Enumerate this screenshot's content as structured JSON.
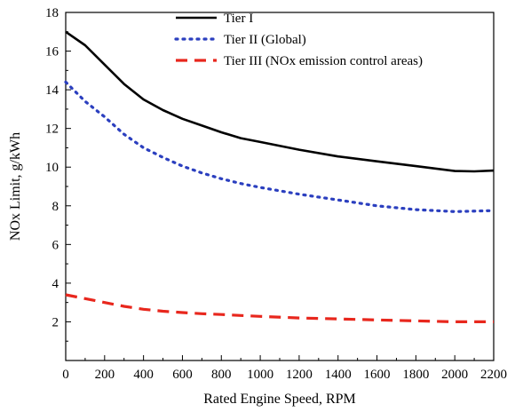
{
  "chart_data": {
    "type": "line",
    "xlabel": "Rated Engine Speed, RPM",
    "ylabel": "NOx Limit, g/kWh",
    "xlim": [
      0,
      2200
    ],
    "ylim": [
      0,
      18
    ],
    "xticks": [
      0,
      200,
      400,
      600,
      800,
      1000,
      1200,
      1400,
      1600,
      1800,
      2000,
      2200
    ],
    "yticks": [
      2,
      4,
      6,
      8,
      10,
      12,
      14,
      16,
      18
    ],
    "grid": false,
    "legend_position": "top-right",
    "series": [
      {
        "name": "Tier I",
        "color": "#000000",
        "style": "solid",
        "x": [
          0,
          100,
          200,
          300,
          400,
          500,
          600,
          700,
          800,
          900,
          1000,
          1200,
          1400,
          1600,
          1800,
          2000,
          2100,
          2200
        ],
        "y": [
          17.0,
          16.3,
          15.3,
          14.3,
          13.5,
          12.95,
          12.5,
          12.15,
          11.8,
          11.5,
          11.3,
          10.9,
          10.55,
          10.3,
          10.05,
          9.8,
          9.78,
          9.82
        ]
      },
      {
        "name": "Tier II (Global)",
        "color": "#2b3fbf",
        "style": "dotted",
        "x": [
          0,
          100,
          200,
          300,
          400,
          500,
          600,
          700,
          800,
          900,
          1000,
          1200,
          1400,
          1600,
          1800,
          2000,
          2200
        ],
        "y": [
          14.4,
          13.4,
          12.6,
          11.7,
          11.0,
          10.5,
          10.05,
          9.7,
          9.4,
          9.15,
          8.95,
          8.6,
          8.3,
          8.0,
          7.8,
          7.7,
          7.75
        ]
      },
      {
        "name": "Tier III (NOx emission control areas)",
        "color": "#e8271d",
        "style": "dashed",
        "x": [
          0,
          100,
          200,
          300,
          400,
          500,
          600,
          700,
          800,
          900,
          1000,
          1200,
          1400,
          1600,
          1800,
          2000,
          2200
        ],
        "y": [
          3.4,
          3.2,
          3.0,
          2.8,
          2.65,
          2.55,
          2.48,
          2.42,
          2.38,
          2.33,
          2.28,
          2.2,
          2.15,
          2.1,
          2.05,
          2.0,
          2.0
        ]
      }
    ]
  }
}
